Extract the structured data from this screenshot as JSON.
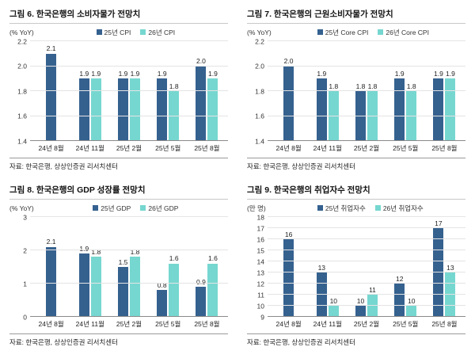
{
  "colors": {
    "series1": "#35618f",
    "series2": "#76d7d0",
    "grid": "#e4e4e4",
    "baseline": "#8a8a8a"
  },
  "chart_data": [
    {
      "type": "bar",
      "title": "그림 6. 한국은행의 소비자물가 전망치",
      "unit": "(% YoY)",
      "source": "자료: 한국은행, 상상인증권 리서치센터",
      "categories": [
        "24년 8월",
        "24년 11월",
        "25년 2월",
        "25년 5월",
        "25년 8월"
      ],
      "series": [
        {
          "name": "25년 CPI",
          "values": [
            2.1,
            1.9,
            1.9,
            1.9,
            2.0
          ]
        },
        {
          "name": "26년 CPI",
          "values": [
            null,
            1.9,
            1.9,
            1.8,
            1.9
          ]
        }
      ],
      "ylim": [
        1.4,
        2.2
      ],
      "ytick_step": 0.2,
      "ytick_decimals": 1,
      "value_decimals": 1,
      "grid": true,
      "legend_position": "top"
    },
    {
      "type": "bar",
      "title": "그림 7. 한국은행의 근원소비자물가 전망치",
      "unit": "(% YoY)",
      "source": "자료: 한국은행, 상상인증권 리서치센터",
      "categories": [
        "24년 8월",
        "24년 11월",
        "25년 2월",
        "25년 5월",
        "25년 8월"
      ],
      "series": [
        {
          "name": "25년 Core CPI",
          "values": [
            2.0,
            1.9,
            1.8,
            1.9,
            1.9
          ]
        },
        {
          "name": "26년 Core CPI",
          "values": [
            null,
            1.8,
            1.8,
            1.8,
            1.9
          ]
        }
      ],
      "ylim": [
        1.4,
        2.2
      ],
      "ytick_step": 0.2,
      "ytick_decimals": 1,
      "value_decimals": 1,
      "grid": true,
      "legend_position": "top"
    },
    {
      "type": "bar",
      "title": "그림 8. 한국은행의 GDP 성장률 전망치",
      "unit": "(% YoY)",
      "source": "자료: 한국은행, 상상인증권 리서치센터",
      "categories": [
        "24년 8월",
        "24년 11월",
        "25년 2월",
        "25년 5월",
        "25년 8월"
      ],
      "series": [
        {
          "name": "25년 GDP",
          "values": [
            2.1,
            1.9,
            1.5,
            0.8,
            0.9
          ]
        },
        {
          "name": "26년 GDP",
          "values": [
            null,
            1.8,
            1.8,
            1.6,
            1.6
          ]
        }
      ],
      "ylim": [
        0,
        3
      ],
      "ytick_step": 1,
      "ytick_decimals": 0,
      "value_decimals": 1,
      "grid": true,
      "legend_position": "top"
    },
    {
      "type": "bar",
      "title": "그림 9. 한국은행의 취업자수 전망치",
      "unit": "(만 명)",
      "source": "자료: 한국은행, 상상인증권 리서치센터",
      "categories": [
        "24년 8월",
        "24년 11월",
        "25년 2월",
        "25년 5월",
        "25년 8월"
      ],
      "series": [
        {
          "name": "25년 취업자수",
          "values": [
            16,
            13,
            10,
            12,
            17
          ]
        },
        {
          "name": "26년 취업자수",
          "values": [
            null,
            10,
            11,
            10,
            13
          ]
        }
      ],
      "ylim": [
        9,
        18
      ],
      "ytick_step": 1,
      "ytick_decimals": 0,
      "value_decimals": 0,
      "grid": true,
      "legend_position": "top"
    }
  ]
}
